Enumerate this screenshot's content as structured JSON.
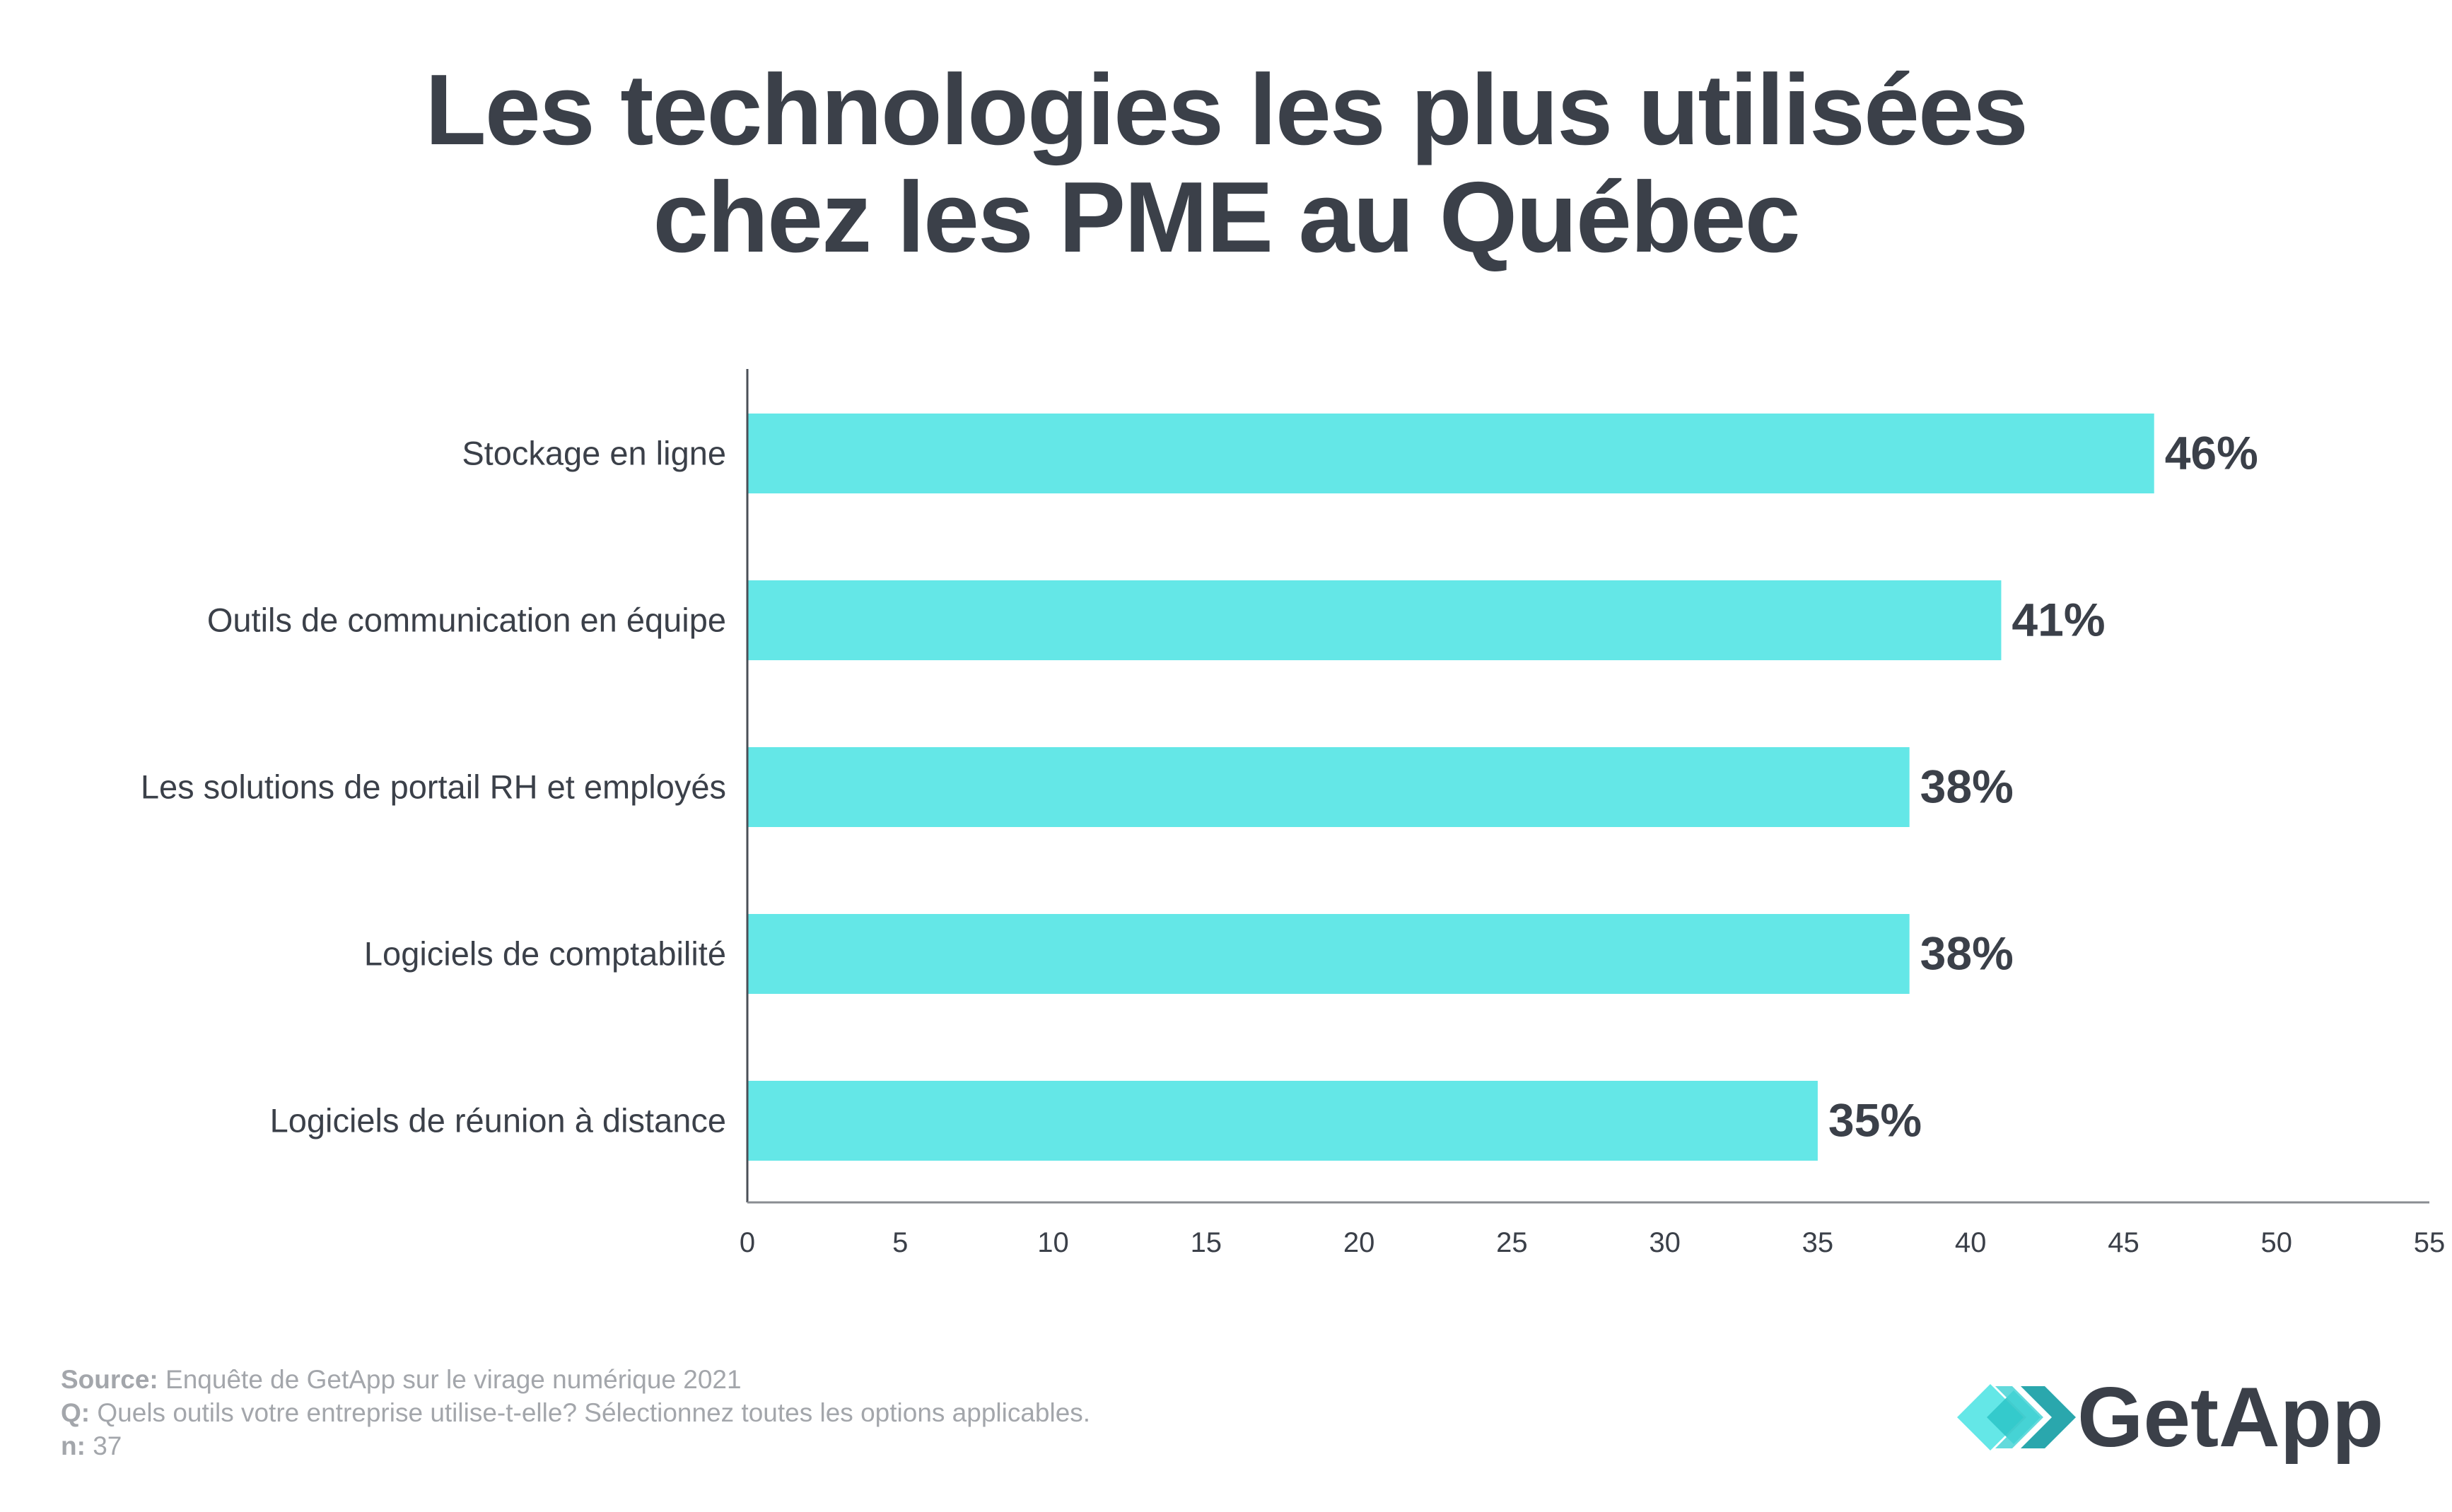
{
  "title_line1": "Les technologies les plus utilisées",
  "title_line2": "chez les PME au Québec",
  "chart_data": {
    "type": "bar",
    "orientation": "horizontal",
    "categories": [
      "Stockage en ligne",
      "Outils de communication en équipe",
      "Les solutions de portail RH et employés",
      "Logiciels de comptabilité",
      "Logiciels de réunion à distance"
    ],
    "values": [
      46,
      41,
      38,
      38,
      35
    ],
    "value_labels": [
      "46%",
      "41%",
      "38%",
      "38%",
      "35%"
    ],
    "xlim": [
      0,
      55
    ],
    "xticks": [
      "0",
      "5",
      "10",
      "15",
      "20",
      "25",
      "30",
      "35",
      "40",
      "45",
      "50",
      "55"
    ],
    "grid": false,
    "bar_color": "#64e7e7"
  },
  "footer": {
    "source_label": "Source:",
    "source_text": " Enquête de GetApp sur le virage numérique 2021",
    "q_label": "Q:",
    "q_text": " Quels outils votre entreprise utilise-t-elle? Sélectionnez toutes les options applicables.",
    "n_label": "n:",
    "n_text": " 37"
  },
  "logo": {
    "text": "GetApp",
    "icon": "getapp-chevrons-icon"
  }
}
